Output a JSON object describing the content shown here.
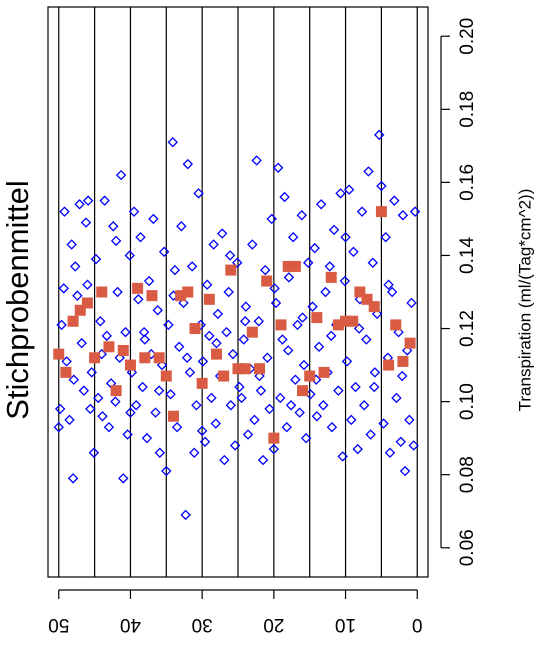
{
  "chart_data": {
    "type": "scatter",
    "title": "Stichprobenmittel",
    "xlabel": "",
    "ylabel": "Transpiration (ml/(Tag*cm^2))",
    "xlim": [
      -1.5,
      51.5
    ],
    "ylim": [
      0.052,
      0.208
    ],
    "x_ticks": [
      0,
      10,
      20,
      30,
      40,
      50
    ],
    "x_tick_labels": [
      "0",
      "10",
      "20",
      "30",
      "40",
      "50"
    ],
    "y_ticks": [
      0.06,
      0.08,
      0.1,
      0.12,
      0.14,
      0.16,
      0.18,
      0.2
    ],
    "y_tick_labels": [
      "0.06",
      "0.08",
      "0.10",
      "0.12",
      "0.14",
      "0.16",
      "0.18",
      "0.20"
    ],
    "vertical_lines": [
      0,
      5,
      10,
      15,
      20,
      25,
      30,
      35,
      40,
      45,
      50
    ],
    "grid": false,
    "orientation": "rotated 90° clockwise: x axis runs along the bottom from right (0) to left (50), y axis runs up the right side",
    "series": [
      {
        "marker": "open diamond",
        "color": "#0000ff",
        "points": [
          [
            50.0,
            0.093
          ],
          [
            49.8,
            0.098
          ],
          [
            49.3,
            0.131
          ],
          [
            49.2,
            0.152
          ],
          [
            48.9,
            0.111
          ],
          [
            48.5,
            0.095
          ],
          [
            48.2,
            0.143
          ],
          [
            48.0,
            0.079
          ],
          [
            47.7,
            0.137
          ],
          [
            47.4,
            0.129
          ],
          [
            47.1,
            0.154
          ],
          [
            46.8,
            0.116
          ],
          [
            46.5,
            0.103
          ],
          [
            46.2,
            0.149
          ],
          [
            45.9,
            0.155
          ],
          [
            45.6,
            0.098
          ],
          [
            45.4,
            0.108
          ],
          [
            45.1,
            0.086
          ],
          [
            44.8,
            0.139
          ],
          [
            44.5,
            0.101
          ],
          [
            44.2,
            0.122
          ],
          [
            43.9,
            0.096
          ],
          [
            43.6,
            0.155
          ],
          [
            43.3,
            0.118
          ],
          [
            43.0,
            0.093
          ],
          [
            42.7,
            0.105
          ],
          [
            42.4,
            0.148
          ],
          [
            42.1,
            0.1
          ],
          [
            41.8,
            0.13
          ],
          [
            41.5,
            0.112
          ],
          [
            41.3,
            0.162
          ],
          [
            41.0,
            0.079
          ],
          [
            40.7,
            0.119
          ],
          [
            40.4,
            0.091
          ],
          [
            40.1,
            0.14
          ],
          [
            39.8,
            0.108
          ],
          [
            39.5,
            0.152
          ],
          [
            39.2,
            0.099
          ],
          [
            38.9,
            0.128
          ],
          [
            38.6,
            0.145
          ],
          [
            38.3,
            0.104
          ],
          [
            38.0,
            0.117
          ],
          [
            37.7,
            0.09
          ],
          [
            37.4,
            0.133
          ],
          [
            37.1,
            0.113
          ],
          [
            36.8,
            0.15
          ],
          [
            36.5,
            0.097
          ],
          [
            36.2,
            0.125
          ],
          [
            35.9,
            0.086
          ],
          [
            35.6,
            0.11
          ],
          [
            35.3,
            0.141
          ],
          [
            35.0,
            0.081
          ],
          [
            34.7,
            0.121
          ],
          [
            34.4,
            0.102
          ],
          [
            34.1,
            0.171
          ],
          [
            33.8,
            0.136
          ],
          [
            33.5,
            0.093
          ],
          [
            33.2,
            0.115
          ],
          [
            32.9,
            0.148
          ],
          [
            32.6,
            0.127
          ],
          [
            32.3,
            0.069
          ],
          [
            32.0,
            0.165
          ],
          [
            31.7,
            0.108
          ],
          [
            31.4,
            0.137
          ],
          [
            31.1,
            0.086
          ],
          [
            30.8,
            0.099
          ],
          [
            30.5,
            0.157
          ],
          [
            30.2,
            0.121
          ],
          [
            29.9,
            0.111
          ],
          [
            29.6,
            0.089
          ],
          [
            29.3,
            0.132
          ],
          [
            29.0,
            0.118
          ],
          [
            28.7,
            0.101
          ],
          [
            28.4,
            0.143
          ],
          [
            28.1,
            0.094
          ],
          [
            27.8,
            0.124
          ],
          [
            27.5,
            0.107
          ],
          [
            27.2,
            0.146
          ],
          [
            26.9,
            0.084
          ],
          [
            26.6,
            0.119
          ],
          [
            26.3,
            0.13
          ],
          [
            26.0,
            0.099
          ],
          [
            25.7,
            0.113
          ],
          [
            25.4,
            0.088
          ],
          [
            25.1,
            0.138
          ],
          [
            24.8,
            0.104
          ],
          [
            24.5,
            0.101
          ],
          [
            24.2,
            0.117
          ],
          [
            23.9,
            0.126
          ],
          [
            23.6,
            0.091
          ],
          [
            23.3,
            0.109
          ],
          [
            23.0,
            0.143
          ],
          [
            22.7,
            0.095
          ],
          [
            22.4,
            0.166
          ],
          [
            22.1,
            0.122
          ],
          [
            21.8,
            0.103
          ],
          [
            21.5,
            0.084
          ],
          [
            21.2,
            0.136
          ],
          [
            20.9,
            0.112
          ],
          [
            20.6,
            0.098
          ],
          [
            20.3,
            0.15
          ],
          [
            20.0,
            0.087
          ],
          [
            19.7,
            0.127
          ],
          [
            19.4,
            0.164
          ],
          [
            19.1,
            0.101
          ],
          [
            18.8,
            0.117
          ],
          [
            18.5,
            0.156
          ],
          [
            18.2,
            0.093
          ],
          [
            17.9,
            0.134
          ],
          [
            17.6,
            0.099
          ],
          [
            17.3,
            0.145
          ],
          [
            17.0,
            0.106
          ],
          [
            16.7,
            0.121
          ],
          [
            16.4,
            0.097
          ],
          [
            16.1,
            0.151
          ],
          [
            15.8,
            0.11
          ],
          [
            15.5,
            0.09
          ],
          [
            15.2,
            0.138
          ],
          [
            14.9,
            0.102
          ],
          [
            14.6,
            0.126
          ],
          [
            14.3,
            0.142
          ],
          [
            14.0,
            0.096
          ],
          [
            13.7,
            0.115
          ],
          [
            13.4,
            0.154
          ],
          [
            13.1,
            0.099
          ],
          [
            12.8,
            0.13
          ],
          [
            12.5,
            0.108
          ],
          [
            12.2,
            0.137
          ],
          [
            11.9,
            0.093
          ],
          [
            11.6,
            0.147
          ],
          [
            11.3,
            0.121
          ],
          [
            11.0,
            0.103
          ],
          [
            10.7,
            0.157
          ],
          [
            10.4,
            0.085
          ],
          [
            10.1,
            0.133
          ],
          [
            9.8,
            0.111
          ],
          [
            9.5,
            0.158
          ],
          [
            9.2,
            0.095
          ],
          [
            8.9,
            0.141
          ],
          [
            8.6,
            0.104
          ],
          [
            8.3,
            0.087
          ],
          [
            8.0,
            0.128
          ],
          [
            7.7,
            0.152
          ],
          [
            7.4,
            0.099
          ],
          [
            7.1,
            0.117
          ],
          [
            6.8,
            0.163
          ],
          [
            6.5,
            0.091
          ],
          [
            6.2,
            0.138
          ],
          [
            5.9,
            0.108
          ],
          [
            5.6,
            0.124
          ],
          [
            5.3,
            0.173
          ],
          [
            5.0,
            0.159
          ],
          [
            4.7,
            0.094
          ],
          [
            4.4,
            0.145
          ],
          [
            4.1,
            0.112
          ],
          [
            3.8,
            0.086
          ],
          [
            3.5,
            0.13
          ],
          [
            3.2,
            0.155
          ],
          [
            2.9,
            0.101
          ],
          [
            2.6,
            0.119
          ],
          [
            2.3,
            0.089
          ],
          [
            2.0,
            0.151
          ],
          [
            1.7,
            0.081
          ],
          [
            1.4,
            0.114
          ],
          [
            1.1,
            0.095
          ],
          [
            0.8,
            0.127
          ],
          [
            0.5,
            0.088
          ],
          [
            0.3,
            0.152
          ],
          [
            49.6,
            0.121
          ],
          [
            47.9,
            0.106
          ],
          [
            46.0,
            0.132
          ],
          [
            44.0,
            0.113
          ],
          [
            42.0,
            0.144
          ],
          [
            40.0,
            0.097
          ],
          [
            38.1,
            0.119
          ],
          [
            36.0,
            0.103
          ],
          [
            34.0,
            0.129
          ],
          [
            32.1,
            0.112
          ],
          [
            30.0,
            0.092
          ],
          [
            28.0,
            0.116
          ],
          [
            26.1,
            0.14
          ],
          [
            24.0,
            0.122
          ],
          [
            22.0,
            0.107
          ],
          [
            19.9,
            0.131
          ],
          [
            18.0,
            0.114
          ],
          [
            16.0,
            0.123
          ],
          [
            14.1,
            0.106
          ],
          [
            12.0,
            0.118
          ],
          [
            10.0,
            0.145
          ],
          [
            8.1,
            0.12
          ],
          [
            6.0,
            0.104
          ],
          [
            4.0,
            0.132
          ],
          [
            2.1,
            0.107
          ]
        ]
      },
      {
        "marker": "filled square",
        "color": "#d95b43",
        "points": [
          [
            50.0,
            0.113
          ],
          [
            49.0,
            0.108
          ],
          [
            48.0,
            0.122
          ],
          [
            47.0,
            0.125
          ],
          [
            46.0,
            0.127
          ],
          [
            45.0,
            0.112
          ],
          [
            44.0,
            0.13
          ],
          [
            43.0,
            0.115
          ],
          [
            42.0,
            0.103
          ],
          [
            41.0,
            0.114
          ],
          [
            40.0,
            0.11
          ],
          [
            39.0,
            0.131
          ],
          [
            38.0,
            0.112
          ],
          [
            37.0,
            0.129
          ],
          [
            36.0,
            0.112
          ],
          [
            35.0,
            0.107
          ],
          [
            34.0,
            0.096
          ],
          [
            33.0,
            0.129
          ],
          [
            32.0,
            0.13
          ],
          [
            31.0,
            0.12
          ],
          [
            30.0,
            0.105
          ],
          [
            29.0,
            0.128
          ],
          [
            28.0,
            0.113
          ],
          [
            27.0,
            0.107
          ],
          [
            26.0,
            0.136
          ],
          [
            25.0,
            0.109
          ],
          [
            24.0,
            0.109
          ],
          [
            23.0,
            0.119
          ],
          [
            22.0,
            0.109
          ],
          [
            21.0,
            0.133
          ],
          [
            20.0,
            0.09
          ],
          [
            19.0,
            0.121
          ],
          [
            18.0,
            0.137
          ],
          [
            17.0,
            0.137
          ],
          [
            16.0,
            0.103
          ],
          [
            15.0,
            0.107
          ],
          [
            14.0,
            0.123
          ],
          [
            13.0,
            0.108
          ],
          [
            12.0,
            0.134
          ],
          [
            11.0,
            0.121
          ],
          [
            10.0,
            0.122
          ],
          [
            9.0,
            0.122
          ],
          [
            8.0,
            0.13
          ],
          [
            7.0,
            0.128
          ],
          [
            6.0,
            0.126
          ],
          [
            5.0,
            0.152
          ],
          [
            4.0,
            0.11
          ],
          [
            3.0,
            0.121
          ],
          [
            2.0,
            0.111
          ],
          [
            1.0,
            0.116
          ]
        ]
      }
    ]
  }
}
